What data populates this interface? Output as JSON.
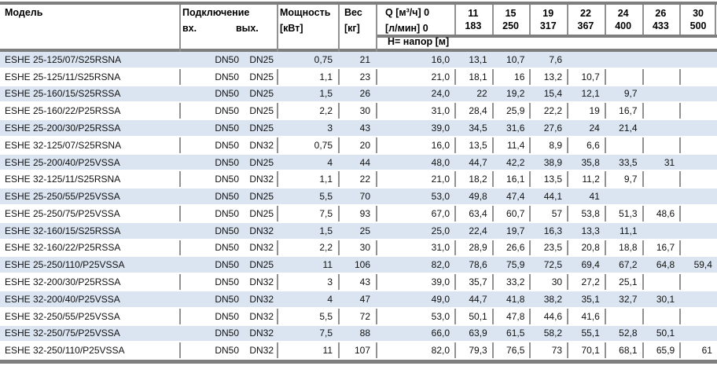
{
  "colors": {
    "row_stripe": "#dbe5f1",
    "border_thick": "#7e7e7e",
    "border_thin": "#919191",
    "text": "#111111"
  },
  "header": {
    "model": "Модель",
    "connection": "Подключение",
    "inlet": "вх.",
    "outlet": "вых.",
    "power_line1": "Мощность",
    "power_line2": "[кВт]",
    "weight_line1": "Вес",
    "weight_line2": "[кг]",
    "q_line1": "Q [м³/ч] 0",
    "q_line2": "[л/мин] 0",
    "head_label": "H= напор [м]",
    "q_columns": [
      {
        "m3h": "11",
        "lmin": "183"
      },
      {
        "m3h": "15",
        "lmin": "250"
      },
      {
        "m3h": "19",
        "lmin": "317"
      },
      {
        "m3h": "22",
        "lmin": "367"
      },
      {
        "m3h": "24",
        "lmin": "400"
      },
      {
        "m3h": "26",
        "lmin": "433"
      },
      {
        "m3h": "30",
        "lmin": "500"
      }
    ]
  },
  "table": {
    "rows": [
      {
        "model": "ESHE 25-125/07/S25RSNA",
        "inlet": "DN50",
        "outlet": "DN25",
        "power": "0,75",
        "weight": "21",
        "h": [
          "16,0",
          "13,1",
          "10,7",
          "7,6",
          "",
          "",
          "",
          ""
        ]
      },
      {
        "model": "ESHE 25-125/11/S25RSNA",
        "inlet": "DN50",
        "outlet": "DN25",
        "power": "1,1",
        "weight": "23",
        "h": [
          "21,0",
          "18,1",
          "16",
          "13,2",
          "10,7",
          "",
          "",
          ""
        ]
      },
      {
        "model": "ESHE 25-160/15/S25RSSA",
        "inlet": "DN50",
        "outlet": "DN25",
        "power": "1,5",
        "weight": "26",
        "h": [
          "24,0",
          "22",
          "19,2",
          "15,4",
          "12,1",
          "9,7",
          "",
          ""
        ]
      },
      {
        "model": "ESHE 25-160/22/P25RSSA",
        "inlet": "DN50",
        "outlet": "DN25",
        "power": "2,2",
        "weight": "30",
        "h": [
          "31,0",
          "28,4",
          "25,9",
          "22,2",
          "19",
          "16,7",
          "",
          ""
        ]
      },
      {
        "model": "ESHE 25-200/30/P25RSSA",
        "inlet": "DN50",
        "outlet": "DN25",
        "power": "3",
        "weight": "43",
        "h": [
          "39,0",
          "34,5",
          "31,6",
          "27,6",
          "24",
          "21,4",
          "",
          ""
        ]
      },
      {
        "model": "ESHE 32-125/07/S25RSNA",
        "inlet": "DN50",
        "outlet": "DN32",
        "power": "0,75",
        "weight": "20",
        "h": [
          "16,0",
          "13,5",
          "11,4",
          "8,9",
          "6,6",
          "",
          "",
          ""
        ]
      },
      {
        "model": "ESHE 25-200/40/P25VSSA",
        "inlet": "DN50",
        "outlet": "DN25",
        "power": "4",
        "weight": "44",
        "h": [
          "48,0",
          "44,7",
          "42,2",
          "38,9",
          "35,8",
          "33,5",
          "31",
          ""
        ]
      },
      {
        "model": "ESHE 32-125/11/S25RSNA",
        "inlet": "DN50",
        "outlet": "DN32",
        "power": "1,1",
        "weight": "22",
        "h": [
          "21,0",
          "18,2",
          "16,1",
          "13,5",
          "11,2",
          "9,7",
          "",
          ""
        ]
      },
      {
        "model": "ESHE 25-250/55/P25VSSA",
        "inlet": "DN50",
        "outlet": "DN25",
        "power": "5,5",
        "weight": "70",
        "h": [
          "53,0",
          "49,8",
          "47,4",
          "44,1",
          "41",
          "",
          "",
          ""
        ]
      },
      {
        "model": "ESHE 25-250/75/P25VSSA",
        "inlet": "DN50",
        "outlet": "DN25",
        "power": "7,5",
        "weight": "93",
        "h": [
          "67,0",
          "63,4",
          "60,7",
          "57",
          "53,8",
          "51,3",
          "48,6",
          ""
        ]
      },
      {
        "model": "ESHE 32-160/15/S25RSSA",
        "inlet": "DN50",
        "outlet": "DN32",
        "power": "1,5",
        "weight": "25",
        "h": [
          "25,0",
          "22,4",
          "19,7",
          "16,3",
          "13,3",
          "11,1",
          "",
          ""
        ]
      },
      {
        "model": "ESHE 32-160/22/P25RSSA",
        "inlet": "DN50",
        "outlet": "DN32",
        "power": "2,2",
        "weight": "30",
        "h": [
          "31,0",
          "28,9",
          "26,6",
          "23,5",
          "20,8",
          "18,8",
          "16,7",
          ""
        ]
      },
      {
        "model": "ESHE 25-250/110/P25VSSA",
        "inlet": "DN50",
        "outlet": "DN25",
        "power": "11",
        "weight": "106",
        "h": [
          "82,0",
          "78,6",
          "75,9",
          "72,5",
          "69,4",
          "67,2",
          "64,8",
          "59,4"
        ]
      },
      {
        "model": "ESHE 32-200/30/P25RSSA",
        "inlet": "DN50",
        "outlet": "DN32",
        "power": "3",
        "weight": "43",
        "h": [
          "39,0",
          "35,7",
          "33,2",
          "30",
          "27,2",
          "25,1",
          "",
          ""
        ]
      },
      {
        "model": "ESHE 32-200/40/P25VSSA",
        "inlet": "DN50",
        "outlet": "DN32",
        "power": "4",
        "weight": "47",
        "h": [
          "49,0",
          "44,7",
          "41,8",
          "38,2",
          "35,1",
          "32,7",
          "30,1",
          ""
        ]
      },
      {
        "model": "ESHE 32-250/55/P25VSSA",
        "inlet": "DN50",
        "outlet": "DN32",
        "power": "5,5",
        "weight": "72",
        "h": [
          "53,0",
          "50,1",
          "47,8",
          "44,6",
          "41,6",
          "",
          "",
          ""
        ]
      },
      {
        "model": "ESHE 32-250/75/P25VSSA",
        "inlet": "DN50",
        "outlet": "DN32",
        "power": "7,5",
        "weight": "88",
        "h": [
          "66,0",
          "63,9",
          "61,5",
          "58,2",
          "55,1",
          "52,8",
          "50,1",
          ""
        ]
      },
      {
        "model": "ESHE 32-250/110/P25VSSA",
        "inlet": "DN50",
        "outlet": "DN32",
        "power": "11",
        "weight": "107",
        "h": [
          "82,0",
          "79,3",
          "76,5",
          "73",
          "70,1",
          "68,1",
          "65,9",
          "61"
        ]
      }
    ]
  }
}
